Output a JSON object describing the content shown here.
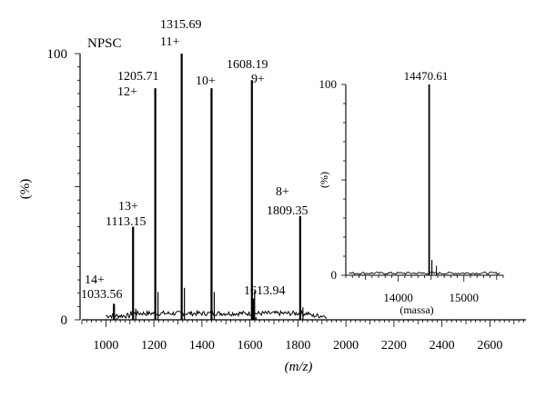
{
  "chart_data": [
    {
      "type": "line",
      "title": "NPSC",
      "xlabel": "(m/z)",
      "ylabel": "(%)",
      "xlim": [
        900,
        2750
      ],
      "ylim": [
        0,
        100
      ],
      "x_ticks": [
        "1000",
        "1200",
        "1400",
        "1600",
        "1800",
        "2000",
        "2200",
        "2400",
        "2600"
      ],
      "y_ticks": [
        "0",
        "100"
      ],
      "series": [
        {
          "peaks": [
            {
              "x": 1033.56,
              "y": 6
            },
            {
              "x": 1113.15,
              "y": 35
            },
            {
              "x": 1205.71,
              "y": 87
            },
            {
              "x": 1315.69,
              "y": 100
            },
            {
              "x": 1440.0,
              "y": 87
            },
            {
              "x": 1608.19,
              "y": 90
            },
            {
              "x": 1613.94,
              "y": 8
            },
            {
              "x": 1809.35,
              "y": 39
            }
          ]
        }
      ],
      "annotations": [
        {
          "charge": "14+",
          "mz": "1033.56"
        },
        {
          "charge": "13+",
          "mz": "1113.15"
        },
        {
          "charge": "12+",
          "mz": "1205.71"
        },
        {
          "charge": "11+",
          "mz": "1315.69"
        },
        {
          "charge": "10+",
          "mz": ""
        },
        {
          "charge": "9+",
          "mz": "1608.19"
        },
        {
          "charge": "",
          "mz": "1613.94"
        },
        {
          "charge": "8+",
          "mz": "1809.35"
        }
      ]
    },
    {
      "type": "line",
      "title": "",
      "xlabel": "(massa)",
      "ylabel": "(%)",
      "xlim": [
        13200,
        15600
      ],
      "ylim": [
        0,
        100
      ],
      "x_ticks": [
        "14000",
        "15000"
      ],
      "y_ticks": [
        "0",
        "100"
      ],
      "series": [
        {
          "peaks": [
            {
              "x": 14470.61,
              "y": 100
            }
          ]
        }
      ],
      "annotations": [
        {
          "label": "14470.61"
        }
      ]
    }
  ]
}
